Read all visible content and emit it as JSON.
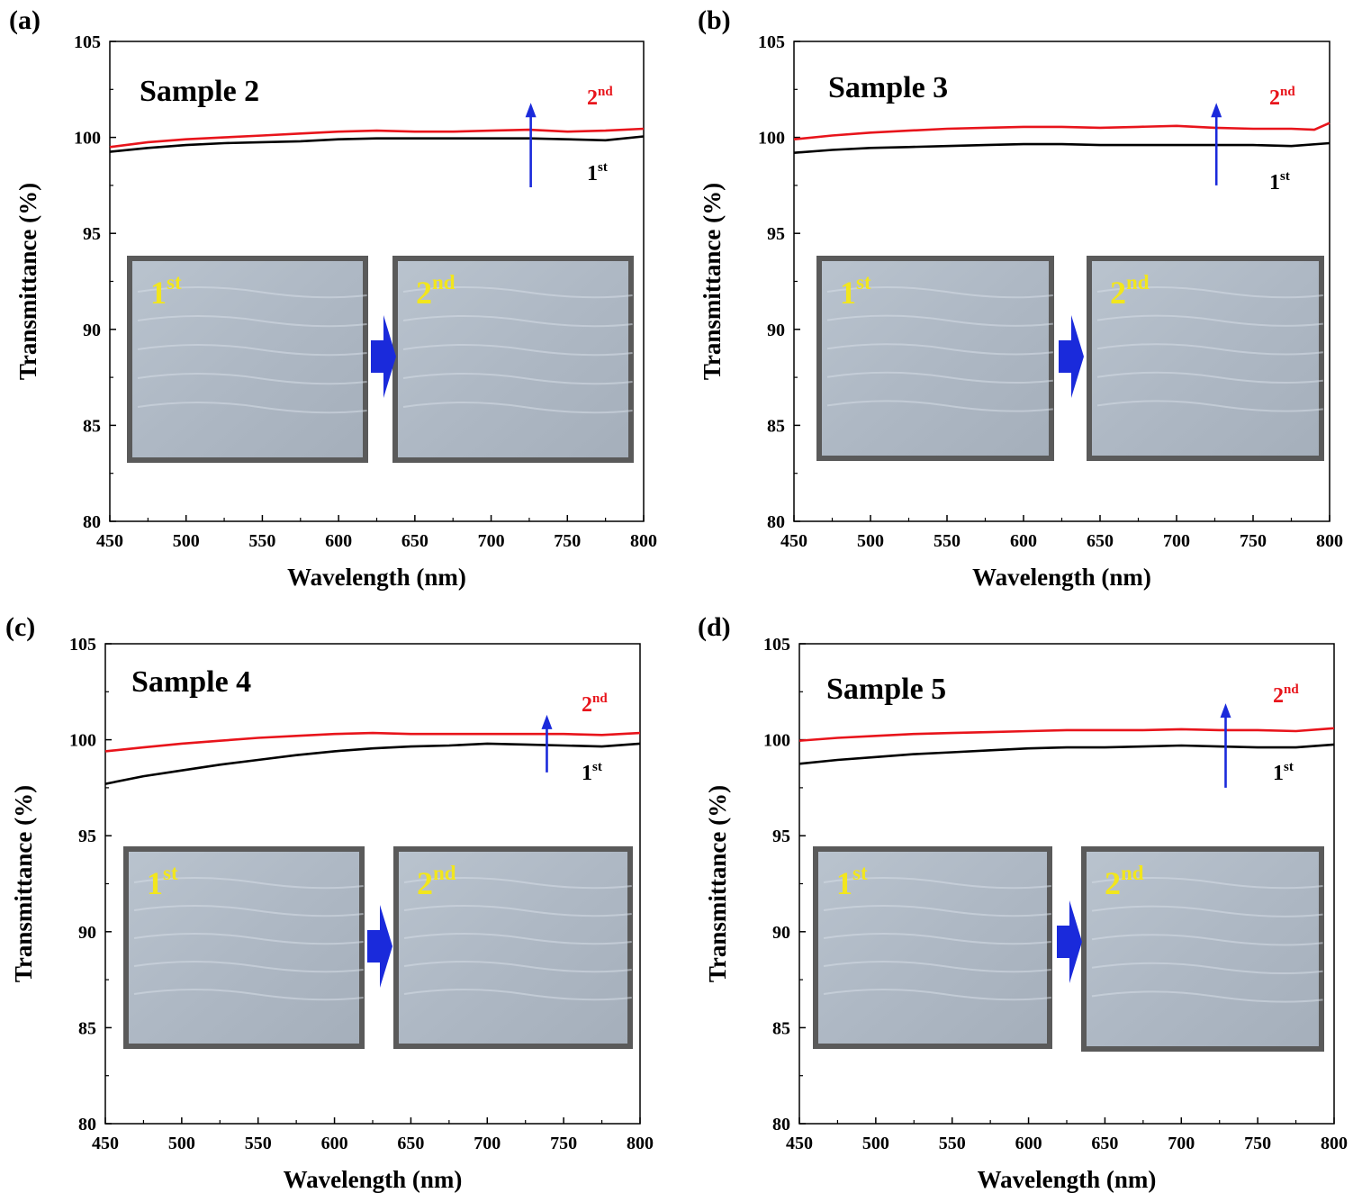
{
  "figure": {
    "colors": {
      "first": "#000000",
      "second": "#e8141b",
      "arrow": "#1a2adb",
      "photo_label": "#f2e61d",
      "photo_bg": "#5a5a5a",
      "photo_film": "#aeb8c4"
    }
  },
  "chart_data": [
    {
      "type": "line",
      "panel": "(a)",
      "title": "Sample 2",
      "xlabel": "Wavelength (nm)",
      "ylabel": "Transmittance (%)",
      "xlim": [
        450,
        800
      ],
      "ylim": [
        80,
        105
      ],
      "xticks": [
        "450",
        "500",
        "550",
        "600",
        "650",
        "700",
        "750",
        "800"
      ],
      "yticks": [
        "80",
        "85",
        "90",
        "95",
        "100",
        "105"
      ],
      "series": [
        {
          "name": "2nd",
          "label_main": "2",
          "label_sup": "nd",
          "color": "#e8141b",
          "x": [
            450,
            475,
            500,
            525,
            550,
            575,
            600,
            625,
            650,
            675,
            700,
            725,
            750,
            775,
            800
          ],
          "y": [
            99.5,
            99.75,
            99.9,
            100.0,
            100.1,
            100.2,
            100.3,
            100.35,
            100.3,
            100.3,
            100.35,
            100.4,
            100.3,
            100.35,
            100.45
          ]
        },
        {
          "name": "1st",
          "label_main": "1",
          "label_sup": "st",
          "color": "#000000",
          "x": [
            450,
            475,
            500,
            525,
            550,
            575,
            600,
            625,
            650,
            675,
            700,
            725,
            750,
            775,
            800
          ],
          "y": [
            99.25,
            99.45,
            99.6,
            99.7,
            99.75,
            99.8,
            99.9,
            99.95,
            99.95,
            99.95,
            99.95,
            99.95,
            99.9,
            99.85,
            100.05
          ]
        }
      ],
      "arrow": {
        "x": 726,
        "y_from": 97.4,
        "y_to": 101.8
      },
      "photos": [
        {
          "label_main": "1",
          "label_sup": "st"
        },
        {
          "label_main": "2",
          "label_sup": "nd"
        }
      ]
    },
    {
      "type": "line",
      "panel": "(b)",
      "title": "Sample 3",
      "xlabel": "Wavelength (nm)",
      "ylabel": "Transmittance (%)",
      "xlim": [
        450,
        800
      ],
      "ylim": [
        80,
        105
      ],
      "xticks": [
        "450",
        "500",
        "550",
        "600",
        "650",
        "700",
        "750",
        "800"
      ],
      "yticks": [
        "80",
        "85",
        "90",
        "95",
        "100",
        "105"
      ],
      "series": [
        {
          "name": "2nd",
          "label_main": "2",
          "label_sup": "nd",
          "color": "#e8141b",
          "x": [
            450,
            475,
            500,
            525,
            550,
            575,
            600,
            625,
            650,
            675,
            700,
            725,
            750,
            775,
            790,
            800
          ],
          "y": [
            99.9,
            100.1,
            100.25,
            100.35,
            100.45,
            100.5,
            100.55,
            100.55,
            100.5,
            100.55,
            100.6,
            100.5,
            100.45,
            100.45,
            100.4,
            100.75
          ]
        },
        {
          "name": "1st",
          "label_main": "1",
          "label_sup": "st",
          "color": "#000000",
          "x": [
            450,
            475,
            500,
            525,
            550,
            575,
            600,
            625,
            650,
            675,
            700,
            725,
            750,
            775,
            800
          ],
          "y": [
            99.2,
            99.35,
            99.45,
            99.5,
            99.55,
            99.6,
            99.65,
            99.65,
            99.6,
            99.6,
            99.6,
            99.6,
            99.6,
            99.55,
            99.7
          ]
        }
      ],
      "arrow": {
        "x": 726,
        "y_from": 97.5,
        "y_to": 101.8
      },
      "photos": [
        {
          "label_main": "1",
          "label_sup": "st"
        },
        {
          "label_main": "2",
          "label_sup": "nd"
        }
      ]
    },
    {
      "type": "line",
      "panel": "(c)",
      "title": "Sample 4",
      "xlabel": "Wavelength (nm)",
      "ylabel": "Transmittance (%)",
      "xlim": [
        450,
        800
      ],
      "ylim": [
        80,
        105
      ],
      "xticks": [
        "450",
        "500",
        "550",
        "600",
        "650",
        "700",
        "750",
        "800"
      ],
      "yticks": [
        "80",
        "85",
        "90",
        "95",
        "100",
        "105"
      ],
      "series": [
        {
          "name": "2nd",
          "label_main": "2",
          "label_sup": "nd",
          "color": "#e8141b",
          "x": [
            450,
            475,
            500,
            525,
            550,
            575,
            600,
            625,
            650,
            675,
            700,
            725,
            750,
            775,
            800
          ],
          "y": [
            99.4,
            99.6,
            99.8,
            99.95,
            100.1,
            100.2,
            100.3,
            100.35,
            100.3,
            100.3,
            100.3,
            100.3,
            100.3,
            100.25,
            100.35
          ]
        },
        {
          "name": "1st",
          "label_main": "1",
          "label_sup": "st",
          "color": "#000000",
          "x": [
            450,
            475,
            500,
            525,
            550,
            575,
            600,
            625,
            650,
            675,
            700,
            725,
            750,
            775,
            800
          ],
          "y": [
            97.7,
            98.1,
            98.4,
            98.7,
            98.95,
            99.2,
            99.4,
            99.55,
            99.65,
            99.7,
            99.8,
            99.75,
            99.7,
            99.65,
            99.8
          ]
        }
      ],
      "arrow": {
        "x": 739,
        "y_from": 98.3,
        "y_to": 101.3
      },
      "photos": [
        {
          "label_main": "1",
          "label_sup": "st"
        },
        {
          "label_main": "2",
          "label_sup": "nd"
        }
      ]
    },
    {
      "type": "line",
      "panel": "(d)",
      "title": "Sample 5",
      "xlabel": "Wavelength (nm)",
      "ylabel": "Transmittance (%)",
      "xlim": [
        450,
        800
      ],
      "ylim": [
        80,
        105
      ],
      "xticks": [
        "450",
        "500",
        "550",
        "600",
        "650",
        "700",
        "750",
        "800"
      ],
      "yticks": [
        "80",
        "85",
        "90",
        "95",
        "100",
        "105"
      ],
      "series": [
        {
          "name": "2nd",
          "label_main": "2",
          "label_sup": "nd",
          "color": "#e8141b",
          "x": [
            450,
            475,
            500,
            525,
            550,
            575,
            600,
            625,
            650,
            675,
            700,
            725,
            750,
            775,
            800
          ],
          "y": [
            99.95,
            100.1,
            100.2,
            100.3,
            100.35,
            100.4,
            100.45,
            100.5,
            100.5,
            100.5,
            100.55,
            100.5,
            100.5,
            100.45,
            100.6
          ]
        },
        {
          "name": "1st",
          "label_main": "1",
          "label_sup": "st",
          "color": "#000000",
          "x": [
            450,
            475,
            500,
            525,
            550,
            575,
            600,
            625,
            650,
            675,
            700,
            725,
            750,
            775,
            800
          ],
          "y": [
            98.75,
            98.95,
            99.1,
            99.25,
            99.35,
            99.45,
            99.55,
            99.6,
            99.6,
            99.65,
            99.7,
            99.65,
            99.6,
            99.6,
            99.75
          ]
        }
      ],
      "arrow": {
        "x": 729,
        "y_from": 97.5,
        "y_to": 101.9
      },
      "photos": [
        {
          "label_main": "1",
          "label_sup": "st"
        },
        {
          "label_main": "2",
          "label_sup": "nd"
        }
      ]
    }
  ]
}
